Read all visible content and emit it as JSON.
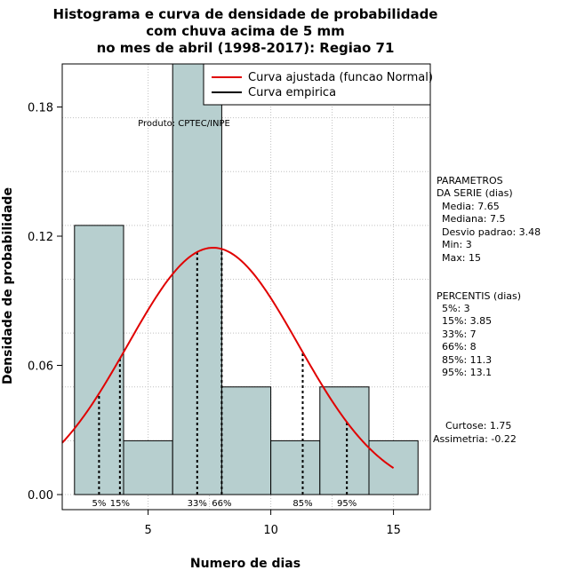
{
  "chart_data": {
    "type": "histogram",
    "title_lines": [
      "Histograma e curva de densidade de probabilidade",
      "com chuva acima de 5 mm",
      "no mes de abril (1998-2017): Regiao 71"
    ],
    "xlabel": "Numero de dias",
    "ylabel": "Densidade de probabilidade",
    "xlim": [
      1.5,
      16.5
    ],
    "ylim": [
      -0.007,
      0.2
    ],
    "x_ticks": [
      5,
      10,
      15
    ],
    "x_tick_labels": [
      "5",
      "10",
      "15"
    ],
    "y_ticks": [
      0.0,
      0.06,
      0.12,
      0.18
    ],
    "y_tick_labels": [
      "0.00",
      "0.06",
      "0.12",
      "0.18"
    ],
    "grid": true,
    "bar_color": "#b7cfcf",
    "bins": [
      {
        "from": 2,
        "to": 4,
        "density": 0.125
      },
      {
        "from": 4,
        "to": 6,
        "density": 0.025
      },
      {
        "from": 6,
        "to": 8,
        "density": 0.2
      },
      {
        "from": 8,
        "to": 10,
        "density": 0.05
      },
      {
        "from": 10,
        "to": 12,
        "density": 0.025
      },
      {
        "from": 12,
        "to": 14,
        "density": 0.05
      },
      {
        "from": 14,
        "to": 16,
        "density": 0.025
      }
    ],
    "normal_fit": {
      "mean": 7.65,
      "sd": 3.48,
      "x_from": 1.5,
      "x_to": 15,
      "color": "#e00000"
    },
    "percentile_lines": [
      {
        "label": "5%",
        "x": 3
      },
      {
        "label": "15%",
        "x": 3.85
      },
      {
        "label": "33%",
        "x": 7
      },
      {
        "label": "66%",
        "x": 8
      },
      {
        "label": "85%",
        "x": 11.3
      },
      {
        "label": "95%",
        "x": 13.1
      }
    ],
    "legend": {
      "position": "top-right",
      "entries": [
        {
          "label": "Curva ajustada (funcao Normal)",
          "color": "#e00000"
        },
        {
          "label": "Curva empirica",
          "color": "#000000"
        }
      ]
    },
    "annotation": "Produto: CPTEC/INPE"
  },
  "side_panel": {
    "parametros_heading": [
      "PARAMETROS",
      "DA SERIE (dias)"
    ],
    "parametros": [
      "Media: 7.65",
      "Mediana: 7.5",
      "Desvio padrao: 3.48",
      "Min: 3",
      "Max: 15"
    ],
    "percentis_heading": "PERCENTIS (dias)",
    "percentis": [
      "5%: 3",
      "15%: 3.85",
      "33%: 7",
      "66%: 8",
      "85%: 11.3",
      "95%: 13.1"
    ],
    "curtose": "Curtose: 1.75",
    "assimetria": "Assimetria: -0.22"
  }
}
